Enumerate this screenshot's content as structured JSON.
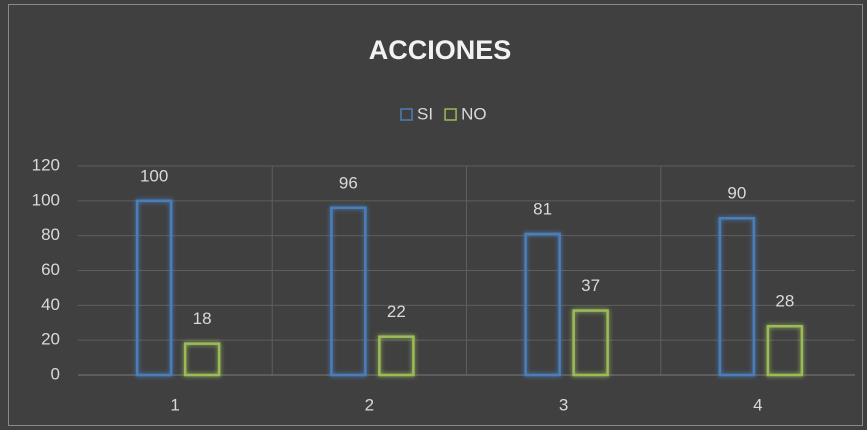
{
  "chart_data": {
    "type": "bar",
    "title": "ACCIONES",
    "categories": [
      "1",
      "2",
      "3",
      "4"
    ],
    "series": [
      {
        "name": "SI",
        "color": "#4a7ebb",
        "values": [
          100,
          96,
          81,
          90
        ]
      },
      {
        "name": "NO",
        "color": "#9bbb59",
        "values": [
          18,
          22,
          37,
          28
        ]
      }
    ],
    "ylim": [
      0,
      120
    ],
    "yticks": [
      0,
      20,
      40,
      60,
      80,
      100,
      120
    ],
    "grid": true,
    "legend": "top"
  }
}
